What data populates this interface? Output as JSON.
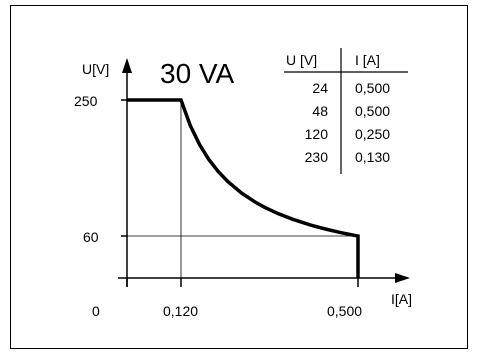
{
  "chart_data": {
    "type": "line",
    "title": "30 VA",
    "ylabel": "U[V]",
    "xlabel": "I[A]",
    "origin_label": "0",
    "y_ticks": [
      {
        "value": 250,
        "label": "250"
      },
      {
        "value": 60,
        "label": "60"
      }
    ],
    "x_ticks": [
      {
        "value": 0.12,
        "label": "0,120"
      },
      {
        "value": 0.5,
        "label": "0,500"
      }
    ],
    "series": [
      {
        "x": [
          0,
          0.12,
          0.14,
          0.16,
          0.18,
          0.2,
          0.22,
          0.25,
          0.28,
          0.3,
          0.33,
          0.36,
          0.4,
          0.43,
          0.46,
          0.5,
          0.5
        ],
        "y": [
          250,
          250,
          214.3,
          187.5,
          166.7,
          150,
          136.4,
          120,
          107.1,
          100,
          90.9,
          83.3,
          75,
          69.8,
          65.2,
          60,
          0
        ]
      }
    ],
    "table": {
      "headers": [
        "U [V]",
        "I [A]"
      ],
      "rows": [
        [
          "24",
          "0,500"
        ],
        [
          "48",
          "0,500"
        ],
        [
          "120",
          "0,250"
        ],
        [
          "230",
          "0,130"
        ]
      ]
    },
    "grid": false
  },
  "colors": {
    "line": "#000000",
    "guide": "#000000",
    "background": "#ffffff"
  }
}
